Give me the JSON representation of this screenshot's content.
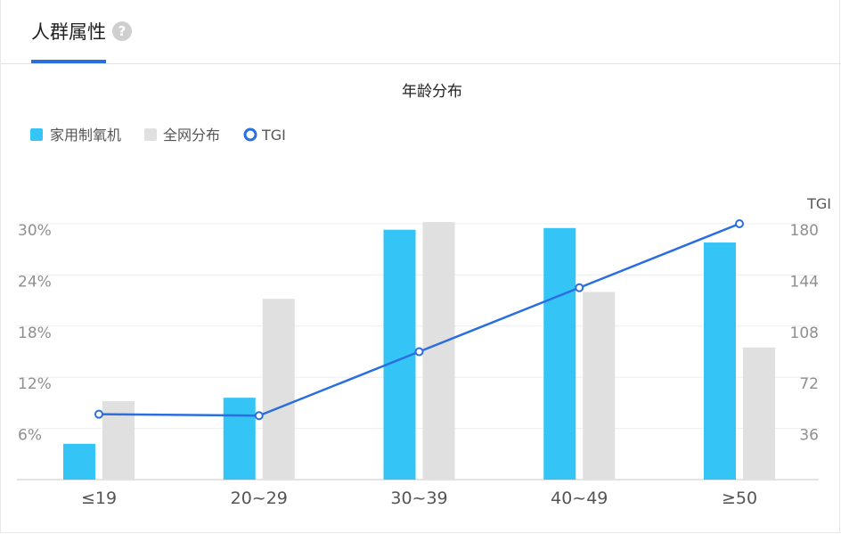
{
  "tab": {
    "title": "人群属性",
    "help_glyph": "?"
  },
  "chart_data": {
    "type": "bar",
    "title": "年龄分布",
    "categories": [
      "≤19",
      "20~29",
      "30~39",
      "40~49",
      "≥50"
    ],
    "series": [
      {
        "name": "家用制氧机",
        "kind": "bar",
        "axis": "left",
        "color": "#35c4f6",
        "values": [
          4.2,
          9.6,
          29.3,
          29.5,
          27.8
        ]
      },
      {
        "name": "全网分布",
        "kind": "bar",
        "axis": "left",
        "color": "#e0e0e0",
        "values": [
          9.2,
          21.2,
          30.2,
          22.0,
          15.5
        ]
      },
      {
        "name": "TGI",
        "kind": "line",
        "axis": "right",
        "color": "#2a6ee0",
        "values": [
          46,
          45,
          90,
          135,
          180
        ]
      }
    ],
    "y_left": {
      "ticks": [
        "6%",
        "12%",
        "18%",
        "24%",
        "30%"
      ],
      "range": [
        0,
        30
      ]
    },
    "y_right": {
      "label": "TGI",
      "ticks": [
        "36",
        "72",
        "108",
        "144",
        "180"
      ],
      "range": [
        0,
        180
      ]
    },
    "grid": true,
    "legend_position": "top-left"
  }
}
